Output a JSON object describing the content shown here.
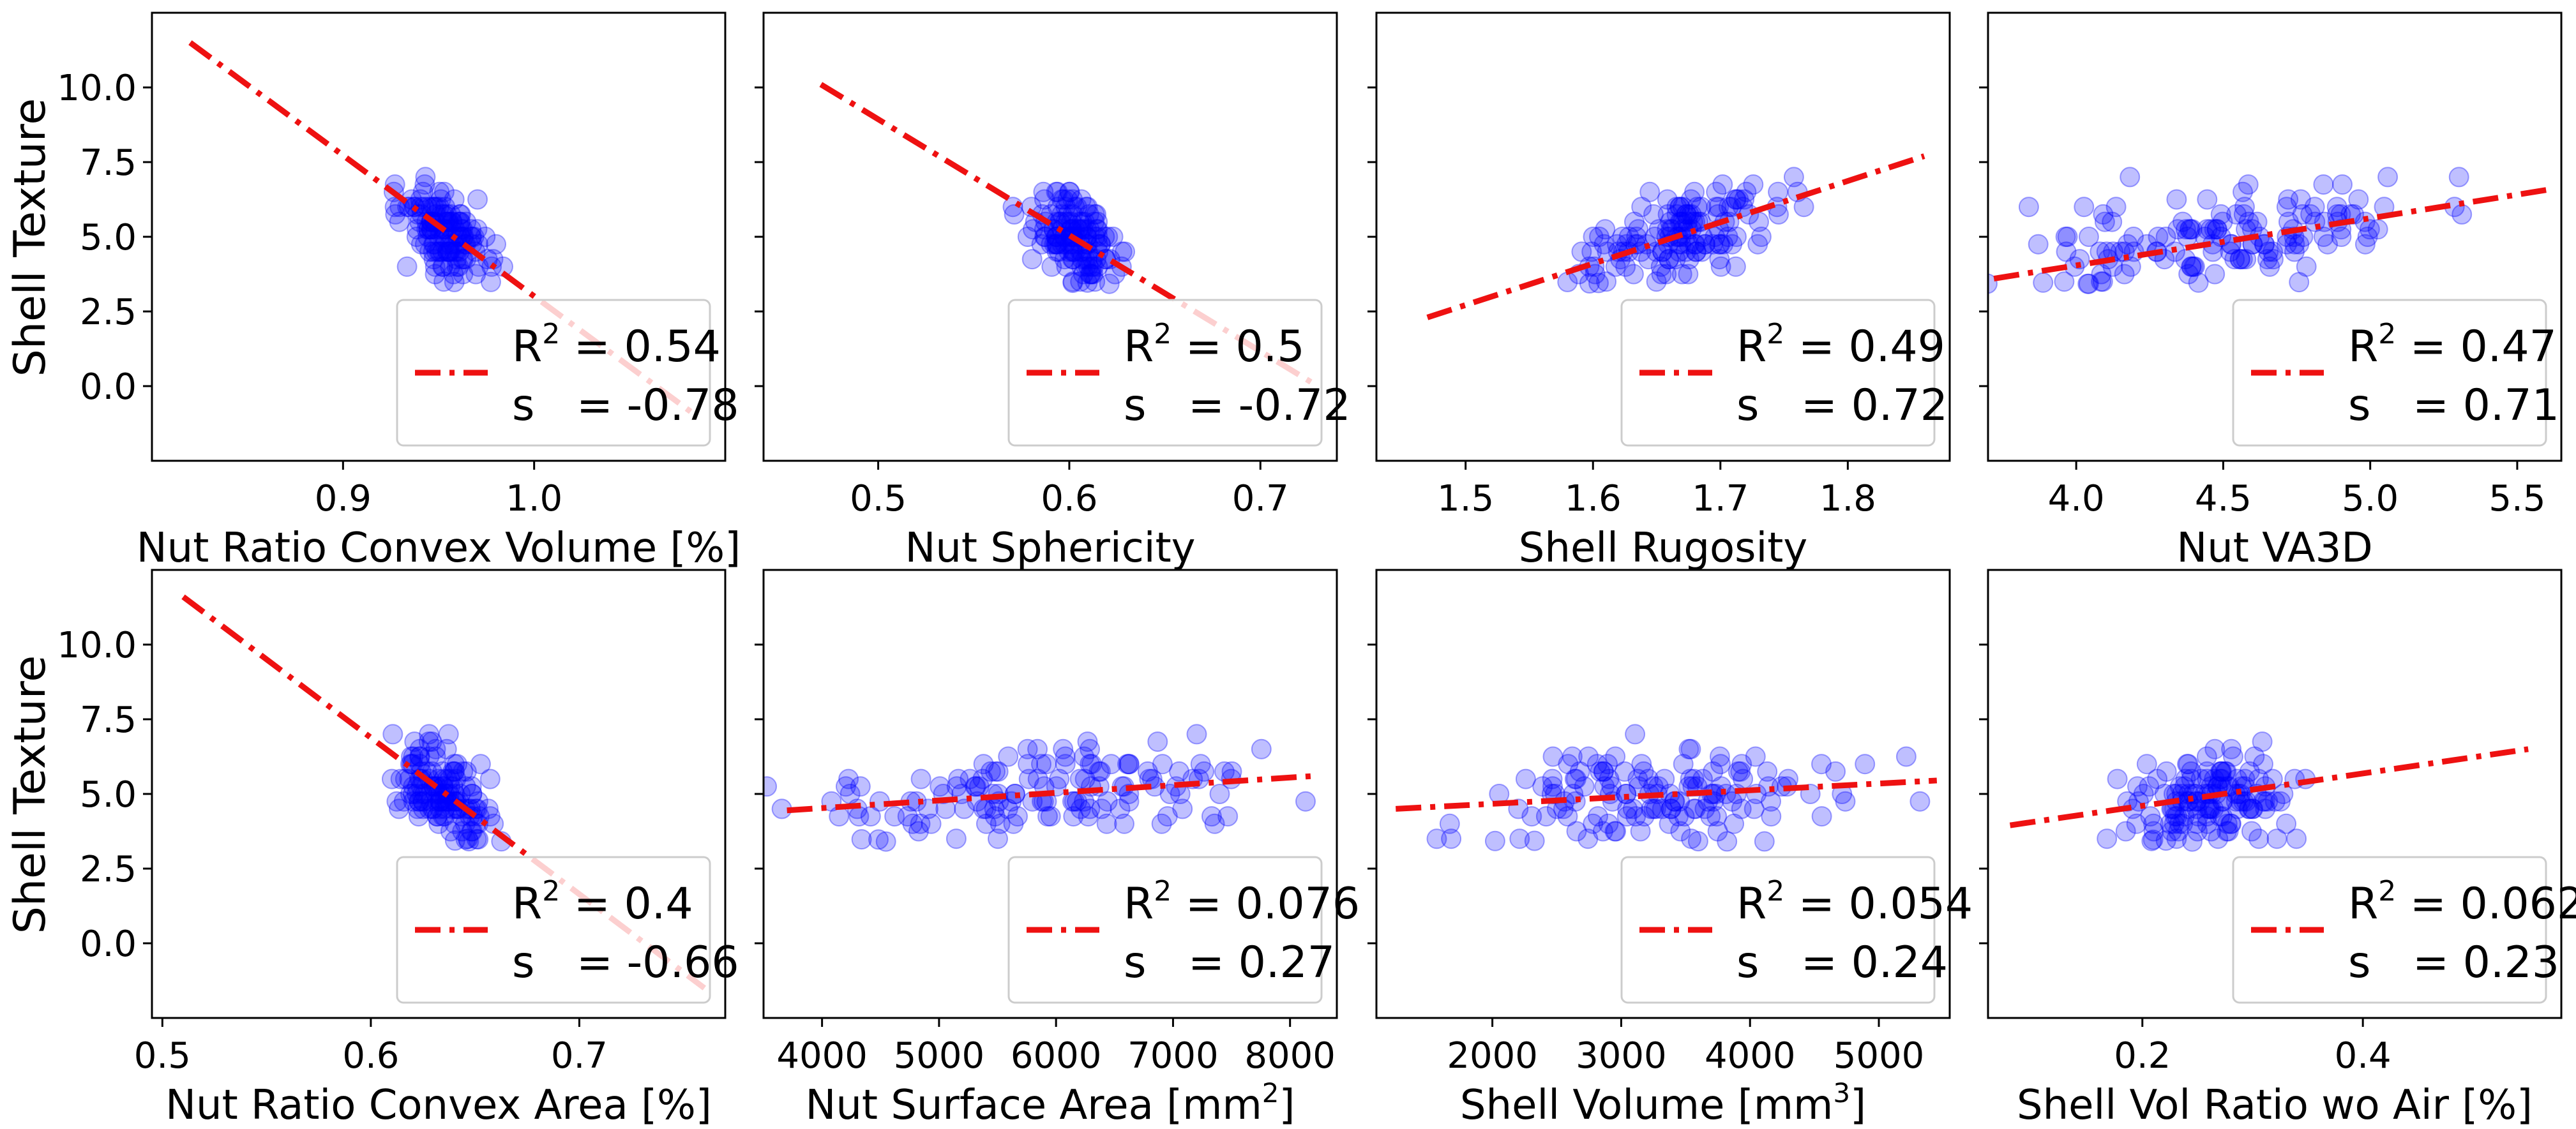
{
  "figure": {
    "shared_ylabel": "Shell Texture",
    "colors": {
      "points": "#0000ff",
      "fit_line": "#ee1111",
      "legend_border": "#cccccc"
    }
  },
  "chart_data": [
    {
      "type": "scatter",
      "xlabel": "Nut Ratio Convex Volume [%]",
      "ylabel": "Shell Texture",
      "xlim": [
        0.8,
        1.1
      ],
      "ylim": [
        -2.5,
        12.5
      ],
      "xticks": [
        0.9,
        1.0
      ],
      "xtick_labels": [
        "0.9",
        "1.0"
      ],
      "yticks": [
        0.0,
        2.5,
        5.0,
        7.5,
        10.0
      ],
      "ytick_labels": [
        "0.0",
        "2.5",
        "5.0",
        "7.5",
        "10.0"
      ],
      "fit": {
        "x": [
          0.82,
          1.085
        ],
        "y": [
          11.5,
          -1.0
        ]
      },
      "legend": {
        "r2_label": "R",
        "r2_sup": "2",
        "r2_value": " = 0.54",
        "s_label": "s",
        "s_value": " = -0.78",
        "position": "lower right"
      },
      "cluster": {
        "cx": 0.955,
        "cy": 5.0,
        "sx": 0.011,
        "sy": 0.7,
        "slope": -30,
        "n": 140
      }
    },
    {
      "type": "scatter",
      "xlabel": "Nut Sphericity",
      "ylabel": "",
      "xlim": [
        0.44,
        0.74
      ],
      "ylim": [
        -2.5,
        12.5
      ],
      "xticks": [
        0.5,
        0.6,
        0.7
      ],
      "xtick_labels": [
        "0.5",
        "0.6",
        "0.7"
      ],
      "yticks": [
        0.0,
        2.5,
        5.0,
        7.5,
        10.0
      ],
      "ytick_labels": [],
      "fit": {
        "x": [
          0.47,
          0.73
        ],
        "y": [
          10.1,
          0.0
        ]
      },
      "legend": {
        "r2_label": "R",
        "r2_sup": "2",
        "r2_value": " = 0.5",
        "s_label": "s",
        "s_value": " = -0.72",
        "position": "lower right"
      },
      "cluster": {
        "cx": 0.605,
        "cy": 5.0,
        "sx": 0.013,
        "sy": 0.7,
        "slope": -25,
        "n": 140
      }
    },
    {
      "type": "scatter",
      "xlabel": "Shell Rugosity",
      "ylabel": "",
      "xlim": [
        1.43,
        1.88
      ],
      "ylim": [
        -2.5,
        12.5
      ],
      "xticks": [
        1.5,
        1.6,
        1.7,
        1.8
      ],
      "xtick_labels": [
        "1.5",
        "1.6",
        "1.7",
        "1.8"
      ],
      "yticks": [
        0.0,
        2.5,
        5.0,
        7.5,
        10.0
      ],
      "ytick_labels": [],
      "fit": {
        "x": [
          1.47,
          1.86
        ],
        "y": [
          2.3,
          7.7
        ]
      },
      "legend": {
        "r2_label": "R",
        "r2_sup": "2",
        "r2_value": " = 0.49",
        "s_label": "s",
        "s_value": " = 0.72",
        "position": "lower right"
      },
      "cluster": {
        "cx": 1.665,
        "cy": 5.0,
        "sx": 0.04,
        "sy": 0.7,
        "slope": 13,
        "n": 140
      }
    },
    {
      "type": "scatter",
      "xlabel": "Nut VA3D",
      "ylabel": "",
      "xlim": [
        3.7,
        5.65
      ],
      "ylim": [
        -2.5,
        12.5
      ],
      "xticks": [
        4.0,
        4.5,
        5.0,
        5.5
      ],
      "xtick_labels": [
        "4.0",
        "4.5",
        "5.0",
        "5.5"
      ],
      "yticks": [
        0.0,
        2.5,
        5.0,
        7.5,
        10.0
      ],
      "ytick_labels": [],
      "fit": {
        "x": [
          3.72,
          5.62
        ],
        "y": [
          3.6,
          6.6
        ]
      },
      "legend": {
        "r2_label": "R",
        "r2_sup": "2",
        "r2_value": " = 0.47",
        "s_label": "s",
        "s_value": " = 0.71",
        "position": "lower right"
      },
      "cluster": {
        "cx": 4.5,
        "cy": 5.0,
        "sx": 0.35,
        "sy": 0.75,
        "slope": 1.6,
        "n": 140
      }
    },
    {
      "type": "scatter",
      "xlabel": "Nut Ratio Convex Area [%]",
      "ylabel": "Shell Texture",
      "xlim": [
        0.495,
        0.77
      ],
      "ylim": [
        -2.5,
        12.5
      ],
      "xticks": [
        0.5,
        0.6,
        0.7
      ],
      "xtick_labels": [
        "0.5",
        "0.6",
        "0.7"
      ],
      "yticks": [
        0.0,
        2.5,
        5.0,
        7.5,
        10.0
      ],
      "ytick_labels": [
        "0.0",
        "2.5",
        "5.0",
        "7.5",
        "10.0"
      ],
      "fit": {
        "x": [
          0.51,
          0.76
        ],
        "y": [
          11.6,
          -1.5
        ]
      },
      "legend": {
        "r2_label": "R",
        "r2_sup": "2",
        "r2_value": " = 0.4",
        "s_label": "s",
        "s_value": " = -0.66",
        "position": "lower right"
      },
      "cluster": {
        "cx": 0.635,
        "cy": 5.0,
        "sx": 0.011,
        "sy": 0.75,
        "slope": -35,
        "n": 140
      }
    },
    {
      "type": "scatter",
      "xlabel": "Nut Surface Area [mm",
      "xlabel_sup": "2",
      "xlabel_end": "]",
      "ylabel": "",
      "xlim": [
        3500,
        8400
      ],
      "ylim": [
        -2.5,
        12.5
      ],
      "xticks": [
        4000,
        5000,
        6000,
        7000,
        8000
      ],
      "xtick_labels": [
        "4000",
        "5000",
        "6000",
        "7000",
        "8000"
      ],
      "yticks": [
        0.0,
        2.5,
        5.0,
        7.5,
        10.0
      ],
      "ytick_labels": [],
      "fit": {
        "x": [
          3700,
          8200
        ],
        "y": [
          4.45,
          5.6
        ]
      },
      "legend": {
        "r2_label": "R",
        "r2_sup": "2",
        "r2_value": " = 0.076",
        "s_label": "s",
        "s_value": " = 0.27",
        "position": "lower right"
      },
      "cluster": {
        "cx": 5800,
        "cy": 4.95,
        "sx": 1000,
        "sy": 0.8,
        "slope": 0.0002,
        "n": 140
      }
    },
    {
      "type": "scatter",
      "xlabel": "Shell Volume [mm",
      "xlabel_sup": "3",
      "xlabel_end": "]",
      "ylabel": "",
      "xlim": [
        1100,
        5550
      ],
      "ylim": [
        -2.5,
        12.5
      ],
      "xticks": [
        2000,
        3000,
        4000,
        5000
      ],
      "xtick_labels": [
        "2000",
        "3000",
        "4000",
        "5000"
      ],
      "yticks": [
        0.0,
        2.5,
        5.0,
        7.5,
        10.0
      ],
      "ytick_labels": [],
      "fit": {
        "x": [
          1250,
          5450
        ],
        "y": [
          4.5,
          5.45
        ]
      },
      "legend": {
        "r2_label": "R",
        "r2_sup": "2",
        "r2_value": " = 0.054",
        "s_label": "s",
        "s_value": " = 0.24",
        "position": "lower right"
      },
      "cluster": {
        "cx": 3100,
        "cy": 4.85,
        "sx": 750,
        "sy": 0.8,
        "slope": 0.0002,
        "n": 140
      }
    },
    {
      "type": "scatter",
      "xlabel": "Shell Vol Ratio wo Air [%]",
      "ylabel": "",
      "xlim": [
        0.06,
        0.58
      ],
      "ylim": [
        -2.5,
        12.5
      ],
      "xticks": [
        0.2,
        0.4
      ],
      "xtick_labels": [
        "0.2",
        "0.4"
      ],
      "yticks": [
        0.0,
        2.5,
        5.0,
        7.5,
        10.0
      ],
      "ytick_labels": [],
      "fit": {
        "x": [
          0.08,
          0.55
        ],
        "y": [
          3.95,
          6.5
        ]
      },
      "legend": {
        "r2_label": "R",
        "r2_sup": "2",
        "r2_value": " = 0.062",
        "s_label": "s",
        "s_value": " = 0.23",
        "position": "lower right"
      },
      "cluster": {
        "cx": 0.262,
        "cy": 4.9,
        "sx": 0.038,
        "sy": 0.75,
        "slope": 5,
        "n": 140
      }
    }
  ]
}
